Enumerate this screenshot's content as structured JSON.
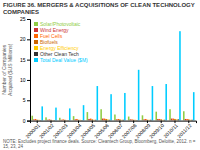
{
  "chart_data": {
    "type": "bar",
    "title": "FIGURE 36. MERGERS & ACQUISITIONS OF CLEAN TECHNOLOGY COMPANIES",
    "ylabel": "Number of Companies\nAcquired ($US Millions)",
    "annotations": [
      "NOTE: Excludes project finance deals. Source: Cleantech Group, Bloomberg, Deloitte, 2012. n = 15, 23, 24"
    ],
    "categories": [
      "2000/01",
      "2001/02",
      "2002/03",
      "2003/04",
      "2004/05",
      "2005/06",
      "2006/07",
      "2007/08",
      "2008/09",
      "2009/10",
      "2010/11",
      "2011/12"
    ],
    "series": [
      {
        "name": "Solar/Photovoltaic",
        "color": "#90cc44",
        "values": [
          1.2,
          0.8,
          0.7,
          1.1,
          2.1,
          2.8,
          1.5,
          1.0,
          1.3,
          2.2,
          2.8,
          2.3
        ]
      },
      {
        "name": "Wind Energy",
        "color": "#cc3333",
        "values": [
          0.3,
          0.2,
          0.2,
          0.3,
          0.4,
          0.5,
          0.3,
          0.3,
          0.3,
          0.4,
          0.5,
          0.4
        ]
      },
      {
        "name": "Fuel Cells",
        "color": "#ff6600",
        "values": [
          0.4,
          0.3,
          0.3,
          0.4,
          0.5,
          0.5,
          0.4,
          0.3,
          0.4,
          0.4,
          0.5,
          0.4
        ]
      },
      {
        "name": "Biofuels",
        "color": "#cc6600",
        "values": [
          0.2,
          0.2,
          0.2,
          0.2,
          0.3,
          0.4,
          0.3,
          0.2,
          0.2,
          0.3,
          0.4,
          0.3
        ]
      },
      {
        "name": "Energy Efficiency",
        "color": "#ffcc00",
        "values": [
          0.2,
          0.1,
          0.1,
          0.2,
          0.2,
          0.3,
          0.2,
          0.2,
          0.2,
          0.2,
          0.3,
          0.2
        ]
      },
      {
        "name": "Other Clean Tech",
        "color": "#333333",
        "values": [
          0.1,
          0.1,
          0.1,
          0.1,
          0.2,
          0.2,
          0.2,
          0.1,
          0.2,
          0.2,
          0.3,
          0.2
        ]
      },
      {
        "name": "Total Deal Value ($M)",
        "color": "#00ccff",
        "values": [
          3.5,
          3.2,
          3.0,
          3.8,
          8.5,
          6.5,
          6.8,
          12.5,
          8.5,
          9.0,
          22.0,
          7.0
        ]
      }
    ],
    "ylim": [
      0,
      25
    ],
    "yticks": [
      0,
      5,
      10,
      15,
      20,
      25
    ],
    "grid": false,
    "legend": "upper left"
  }
}
